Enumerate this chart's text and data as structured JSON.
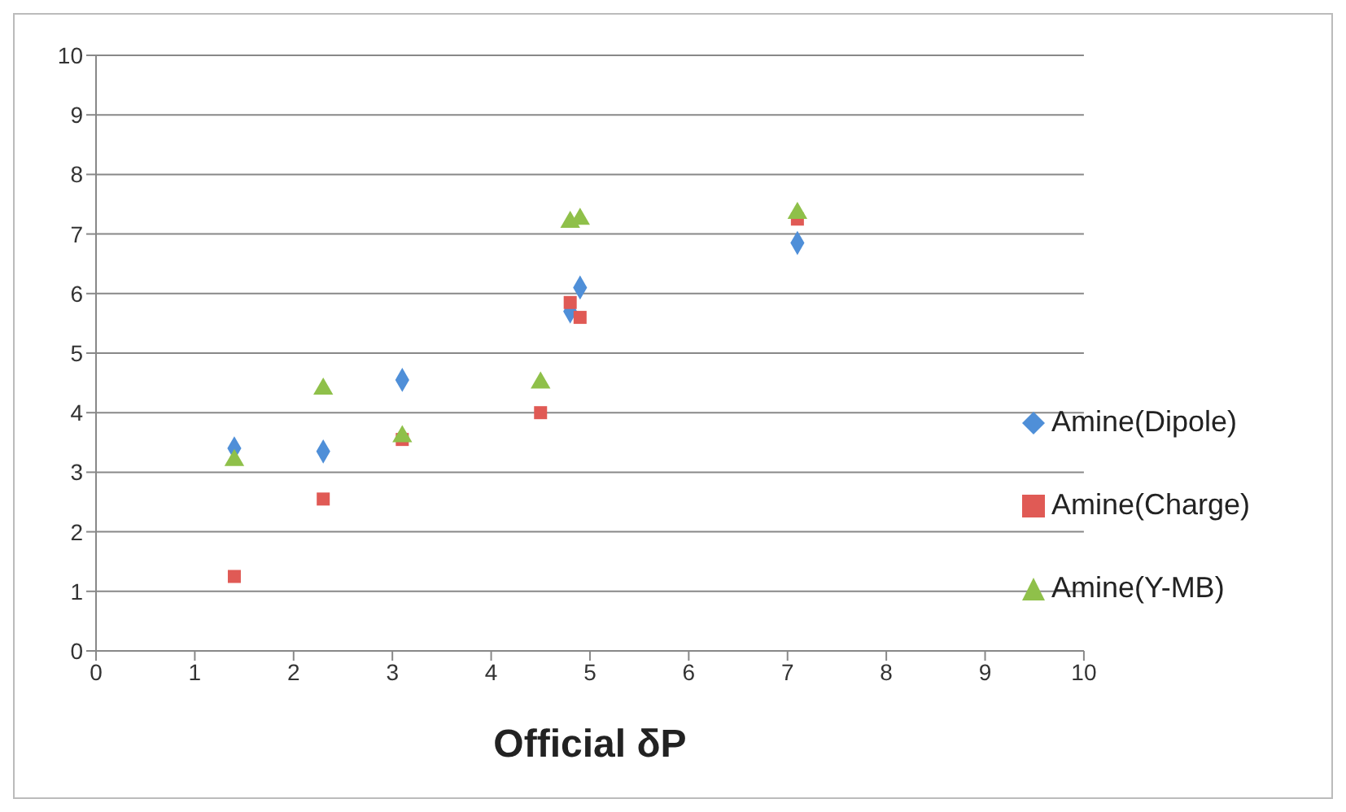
{
  "chart_data": {
    "type": "scatter",
    "xlabel": "Official δP",
    "x": [
      1.4,
      2.3,
      3.1,
      4.5,
      4.8,
      4.9,
      7.1
    ],
    "series": [
      {
        "name": "Amine(Dipole)",
        "color": "#4f8fd8",
        "marker": "diamond",
        "values": [
          3.4,
          3.35,
          4.55,
          null,
          5.7,
          6.1,
          6.85
        ]
      },
      {
        "name": "Amine(Charge)",
        "color": "#e05a55",
        "marker": "square",
        "values": [
          1.25,
          2.55,
          3.55,
          4.0,
          5.85,
          5.6,
          7.25
        ]
      },
      {
        "name": "Amine(Y-MB)",
        "color": "#8fc04a",
        "marker": "triangle",
        "values": [
          3.2,
          4.4,
          3.6,
          4.5,
          7.2,
          7.25,
          7.35
        ]
      }
    ],
    "xlim": [
      0,
      10
    ],
    "xticks": [
      0,
      1,
      2,
      3,
      4,
      5,
      6,
      7,
      8,
      9,
      10
    ],
    "ylim": [
      0,
      10
    ],
    "yticks": [
      0,
      1,
      2,
      3,
      4,
      5,
      6,
      7,
      8,
      9,
      10
    ],
    "grid": "y",
    "legend": "right"
  }
}
